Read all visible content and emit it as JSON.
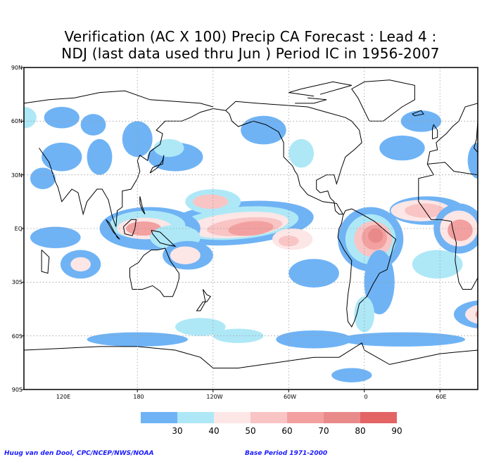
{
  "title": {
    "line1": "Verification (AC X 100) Precip CA Forecast : Lead 4 :",
    "line2": "NDJ (last data used thru Jun ) Period IC in 1956-2007"
  },
  "map": {
    "lat_labels": [
      "90N",
      "60N",
      "30N",
      "EQ",
      "30S",
      "60S",
      "90S"
    ],
    "lon_labels": [
      "120E",
      "180",
      "120W",
      "60W",
      "0",
      "60E"
    ],
    "lon_range": [
      30,
      390
    ],
    "lat_range": [
      -90,
      90
    ],
    "grid": "dotted"
  },
  "legend": {
    "levels": [
      "30",
      "40",
      "50",
      "60",
      "70",
      "80",
      "90"
    ],
    "colors": [
      "#6fb3f5",
      "#aee8f7",
      "#fde6e6",
      "#f9c4c4",
      "#f3a0a0",
      "#e98a8a",
      "#e36464"
    ]
  },
  "credits": {
    "left": "Huug van den Dool, CPC/NCEP/NWS/NOAA",
    "right": "Base Period 1971-2000"
  }
}
